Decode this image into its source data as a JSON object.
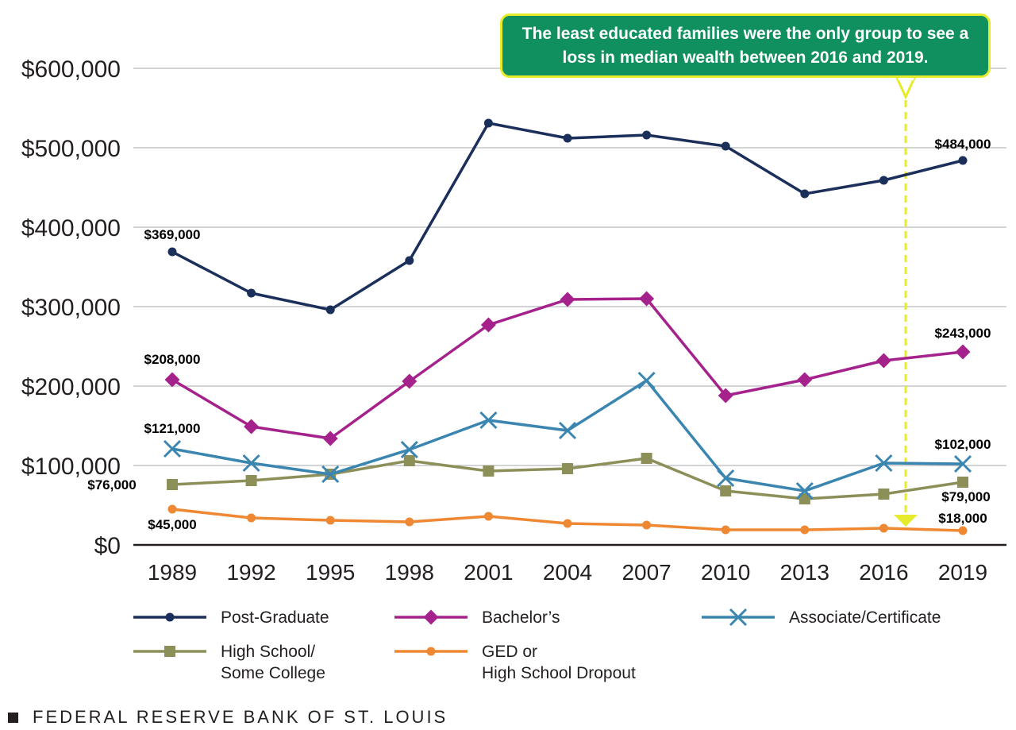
{
  "chart_data": {
    "type": "line",
    "title": "",
    "xlabel": "",
    "ylabel": "",
    "categories": [
      "1989",
      "1992",
      "1995",
      "1998",
      "2001",
      "2004",
      "2007",
      "2010",
      "2013",
      "2016",
      "2019"
    ],
    "ylim": [
      0,
      600000
    ],
    "yticks": [
      {
        "value": 0,
        "label": "$0"
      },
      {
        "value": 100000,
        "label": "$100,000"
      },
      {
        "value": 200000,
        "label": "$200,000"
      },
      {
        "value": 300000,
        "label": "$300,000"
      },
      {
        "value": 400000,
        "label": "$400,000"
      },
      {
        "value": 500000,
        "label": "$500,000"
      },
      {
        "value": 600000,
        "label": "$600,000"
      }
    ],
    "grid": true,
    "series": [
      {
        "name": "Post-Graduate",
        "color": "#1b2f5b",
        "marker": "circle",
        "values": [
          369000,
          317000,
          296000,
          358000,
          531000,
          512000,
          516000,
          502000,
          442000,
          459000,
          484000
        ]
      },
      {
        "name": "Bachelor’s",
        "color": "#a5228d",
        "marker": "diamond",
        "values": [
          208000,
          149000,
          134000,
          206000,
          277000,
          309000,
          310000,
          188000,
          208000,
          232000,
          243000
        ]
      },
      {
        "name": "Associate/Certificate",
        "color": "#3b86b1",
        "marker": "x",
        "values": [
          121000,
          103000,
          89000,
          120000,
          157000,
          144000,
          207000,
          84000,
          68000,
          103000,
          102000
        ]
      },
      {
        "name": "High School/ Some College",
        "color": "#8c8f58",
        "marker": "square",
        "values": [
          76000,
          81000,
          89000,
          106000,
          93000,
          96000,
          109000,
          68000,
          58000,
          64000,
          79000
        ]
      },
      {
        "name": "GED or High School Dropout",
        "color": "#ee8833",
        "marker": "circle",
        "values": [
          45000,
          34000,
          31000,
          29000,
          36000,
          27000,
          25000,
          19000,
          19000,
          21000,
          18000
        ]
      }
    ],
    "data_labels": [
      {
        "series": 0,
        "index": 0,
        "text": "$369,000"
      },
      {
        "series": 0,
        "index": 10,
        "text": "$484,000"
      },
      {
        "series": 1,
        "index": 0,
        "text": "$208,000"
      },
      {
        "series": 1,
        "index": 10,
        "text": "$243,000"
      },
      {
        "series": 2,
        "index": 0,
        "text": "$121,000"
      },
      {
        "series": 2,
        "index": 10,
        "text": "$102,000"
      },
      {
        "series": 3,
        "index": 0,
        "text": "$76,000"
      },
      {
        "series": 3,
        "index": 10,
        "text": "$79,000"
      },
      {
        "series": 4,
        "index": 0,
        "text": "$45,000"
      },
      {
        "series": 4,
        "index": 10,
        "text": "$18,000"
      }
    ],
    "legend": {
      "position": "bottom",
      "items": [
        {
          "series": 0,
          "lines": [
            "Post-Graduate"
          ]
        },
        {
          "series": 1,
          "lines": [
            "Bachelor’s"
          ]
        },
        {
          "series": 2,
          "lines": [
            "Associate/Certificate"
          ]
        },
        {
          "series": 3,
          "lines": [
            "High School/",
            "Some College"
          ]
        },
        {
          "series": 4,
          "lines": [
            "GED or",
            "High School Dropout"
          ]
        }
      ]
    },
    "annotation": {
      "text": "The least educated families were the only group to see a loss in median wealth between 2016 and 2019.",
      "between": [
        "2016",
        "2019"
      ],
      "box_color": "#11905f",
      "border_color": "#e6ec2c",
      "arrow_color": "#e6ec2c"
    }
  },
  "footer": {
    "source": "FEDERAL RESERVE BANK OF ST. LOUIS"
  }
}
